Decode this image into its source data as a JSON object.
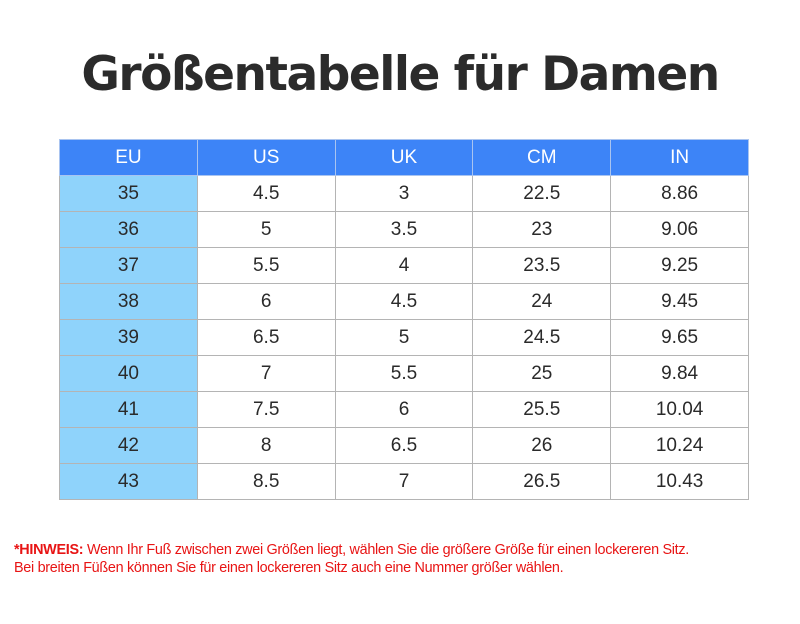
{
  "title": "Größentabelle für Damen",
  "table": {
    "headers": [
      "EU",
      "US",
      "UK",
      "CM",
      "IN"
    ],
    "rows": [
      [
        "35",
        "4.5",
        "3",
        "22.5",
        "8.86"
      ],
      [
        "36",
        "5",
        "3.5",
        "23",
        "9.06"
      ],
      [
        "37",
        "5.5",
        "4",
        "23.5",
        "9.25"
      ],
      [
        "38",
        "6",
        "4.5",
        "24",
        "9.45"
      ],
      [
        "39",
        "6.5",
        "5",
        "24.5",
        "9.65"
      ],
      [
        "40",
        "7",
        "5.5",
        "25",
        "9.84"
      ],
      [
        "41",
        "7.5",
        "6",
        "25.5",
        "10.04"
      ],
      [
        "42",
        "8",
        "6.5",
        "26",
        "10.24"
      ],
      [
        "43",
        "8.5",
        "7",
        "26.5",
        "10.43"
      ]
    ]
  },
  "note": {
    "label": "*HINWEIS:",
    "line1": " Wenn Ihr Fuß zwischen zwei Größen liegt, wählen Sie die größere Größe für einen lockereren Sitz.",
    "line2": "Bei breiten Füßen können Sie für einen lockereren Sitz auch eine Nummer größer wählen."
  },
  "colors": {
    "header_bg": "#3d84f7",
    "eu_column_bg": "#8fd3fb",
    "title_text": "#2b2b2b",
    "note_text": "#e81414"
  }
}
